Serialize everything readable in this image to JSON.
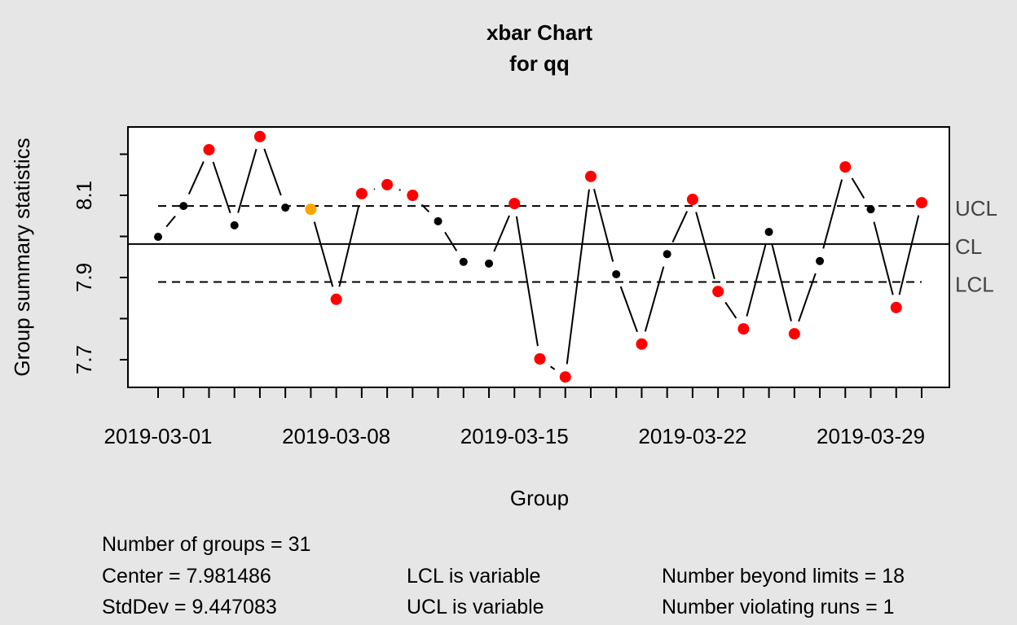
{
  "chart_data": {
    "type": "line",
    "title": "xbar Chart",
    "subtitle": "for qq",
    "xlabel": "Group",
    "ylabel": "Group summary statistics",
    "x": [
      "2019-03-01",
      "2019-03-02",
      "2019-03-03",
      "2019-03-04",
      "2019-03-05",
      "2019-03-06",
      "2019-03-07",
      "2019-03-08",
      "2019-03-09",
      "2019-03-10",
      "2019-03-11",
      "2019-03-12",
      "2019-03-13",
      "2019-03-14",
      "2019-03-15",
      "2019-03-16",
      "2019-03-17",
      "2019-03-18",
      "2019-03-19",
      "2019-03-20",
      "2019-03-21",
      "2019-03-22",
      "2019-03-23",
      "2019-03-24",
      "2019-03-25",
      "2019-03-26",
      "2019-03-27",
      "2019-03-28",
      "2019-03-29",
      "2019-03-30",
      "2019-03-31"
    ],
    "values": [
      7.999,
      8.074,
      8.211,
      8.027,
      8.243,
      8.07,
      8.066,
      7.847,
      8.104,
      8.126,
      8.1,
      8.037,
      7.938,
      7.934,
      8.08,
      7.702,
      7.658,
      8.146,
      7.908,
      7.738,
      7.957,
      8.09,
      7.866,
      7.775,
      8.011,
      7.763,
      7.94,
      8.169,
      8.066,
      7.827,
      8.082
    ],
    "status": [
      "normal",
      "normal",
      "beyond",
      "normal",
      "beyond",
      "normal",
      "run",
      "beyond",
      "beyond",
      "beyond",
      "beyond",
      "normal",
      "normal",
      "normal",
      "beyond",
      "beyond",
      "beyond",
      "beyond",
      "normal",
      "beyond",
      "normal",
      "beyond",
      "beyond",
      "beyond",
      "normal",
      "beyond",
      "normal",
      "beyond",
      "normal",
      "beyond",
      "beyond"
    ],
    "x_tick_labels": [
      "2019-03-01",
      "2019-03-08",
      "2019-03-15",
      "2019-03-22",
      "2019-03-29"
    ],
    "y_tick_labels": [
      "7.7",
      "7.9",
      "8.1"
    ],
    "ylim": [
      7.63,
      8.265
    ],
    "center": 7.981486,
    "ucl": 8.074,
    "lcl": 7.889,
    "limit_labels": {
      "ucl": "UCL",
      "cl": "CL",
      "lcl": "LCL"
    },
    "colors": {
      "normal": "#000000",
      "beyond": "#ff0000",
      "run": "#ffa500"
    }
  },
  "stats": {
    "groups": "Number of groups = 31",
    "center": "Center = 7.981486",
    "stddev": "StdDev = 9.447083",
    "lcl": "LCL is variable",
    "ucl": "UCL is variable",
    "beyond": "Number beyond limits = 18",
    "runs": "Number violating runs = 1"
  }
}
